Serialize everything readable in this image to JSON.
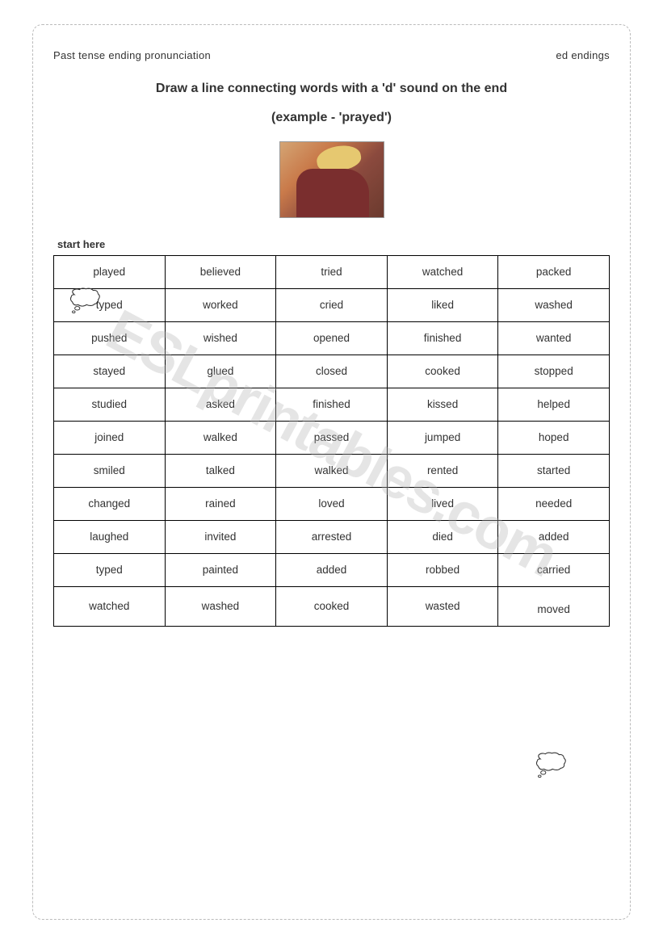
{
  "header": {
    "left": "Past tense ending pronunciation",
    "right": "ed endings"
  },
  "title": "Draw a line connecting words with a 'd' sound on the end",
  "example": "(example -  'prayed')",
  "startLabel": "start here",
  "watermark": "ESLprintables.com",
  "table": {
    "columns": 5,
    "rows": [
      [
        "played",
        "believed",
        "tried",
        "watched",
        "packed"
      ],
      [
        "typed",
        "worked",
        "cried",
        "liked",
        "washed"
      ],
      [
        "pushed",
        "wished",
        "opened",
        "finished",
        "wanted"
      ],
      [
        "stayed",
        "glued",
        "closed",
        "cooked",
        "stopped"
      ],
      [
        "studied",
        "asked",
        "finished",
        "kissed",
        "helped"
      ],
      [
        "joined",
        "walked",
        "passed",
        "jumped",
        "hoped"
      ],
      [
        "smiled",
        "talked",
        "walked",
        "rented",
        "started"
      ],
      [
        "changed",
        "rained",
        "loved",
        "lived",
        "needed"
      ],
      [
        "laughed",
        "invited",
        "arrested",
        "died",
        "added"
      ],
      [
        "typed",
        "painted",
        "added",
        "robbed",
        "carried"
      ],
      [
        "watched",
        "washed",
        "cooked",
        "wasted",
        "moved"
      ]
    ],
    "cellBorderColor": "#000000",
    "cellFontSize": 13.5,
    "cellPaddingV": 12
  },
  "colors": {
    "text": "#333333",
    "border": "#bbbbbb",
    "watermark": "rgba(180,180,180,0.35)"
  }
}
